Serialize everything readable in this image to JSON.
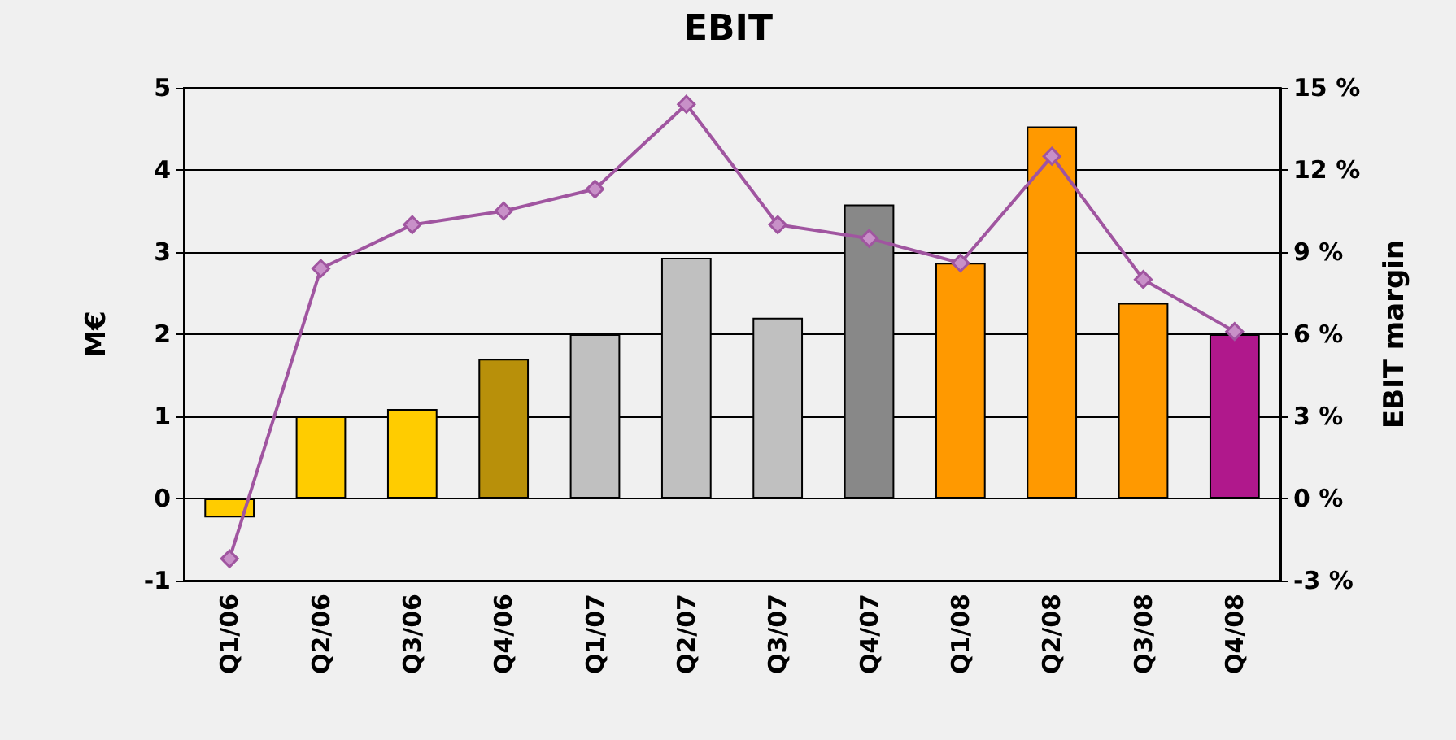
{
  "chart_data": {
    "type": "bar",
    "title": "EBIT",
    "ylabel": "M€",
    "y2label": "EBIT margin",
    "categories": [
      "Q1/06",
      "Q2/06",
      "Q3/06",
      "Q4/06",
      "Q1/07",
      "Q2/07",
      "Q3/07",
      "Q4/07",
      "Q1/08",
      "Q2/08",
      "Q3/08",
      "Q4/08"
    ],
    "series": [
      {
        "colors": [
          "#ffcc00",
          "#ffcc00",
          "#ffcc00",
          "#b8900a",
          "#c0c0c0",
          "#c0c0c0",
          "#c0c0c0",
          "#888888",
          "#ff9900",
          "#ff9900",
          "#ff9900",
          "#b0188c"
        ],
        "values": [
          -0.23,
          1.0,
          1.09,
          1.7,
          2.0,
          2.93,
          2.2,
          3.58,
          2.87,
          4.53,
          2.38,
          2.0
        ]
      },
      {
        "type": "line",
        "axis": "y2",
        "color": "#a055a0",
        "marker": "diamond",
        "values": [
          -2.2,
          8.4,
          10.0,
          10.5,
          11.3,
          14.4,
          10.0,
          9.5,
          8.6,
          12.5,
          8.0,
          6.1
        ]
      }
    ],
    "ylim": [
      -1,
      5
    ],
    "yticks": [
      -1,
      0,
      1,
      2,
      3,
      4,
      5
    ],
    "y2lim": [
      -3,
      15
    ],
    "y2ticks": [
      {
        "value": -3,
        "label": "-3 %"
      },
      {
        "value": 0,
        "label": "0 %"
      },
      {
        "value": 3,
        "label": "3 %"
      },
      {
        "value": 6,
        "label": "6 %"
      },
      {
        "value": 9,
        "label": "9 %"
      },
      {
        "value": 12,
        "label": "12 %"
      },
      {
        "value": 15,
        "label": "15 %"
      }
    ],
    "grid": "y"
  }
}
